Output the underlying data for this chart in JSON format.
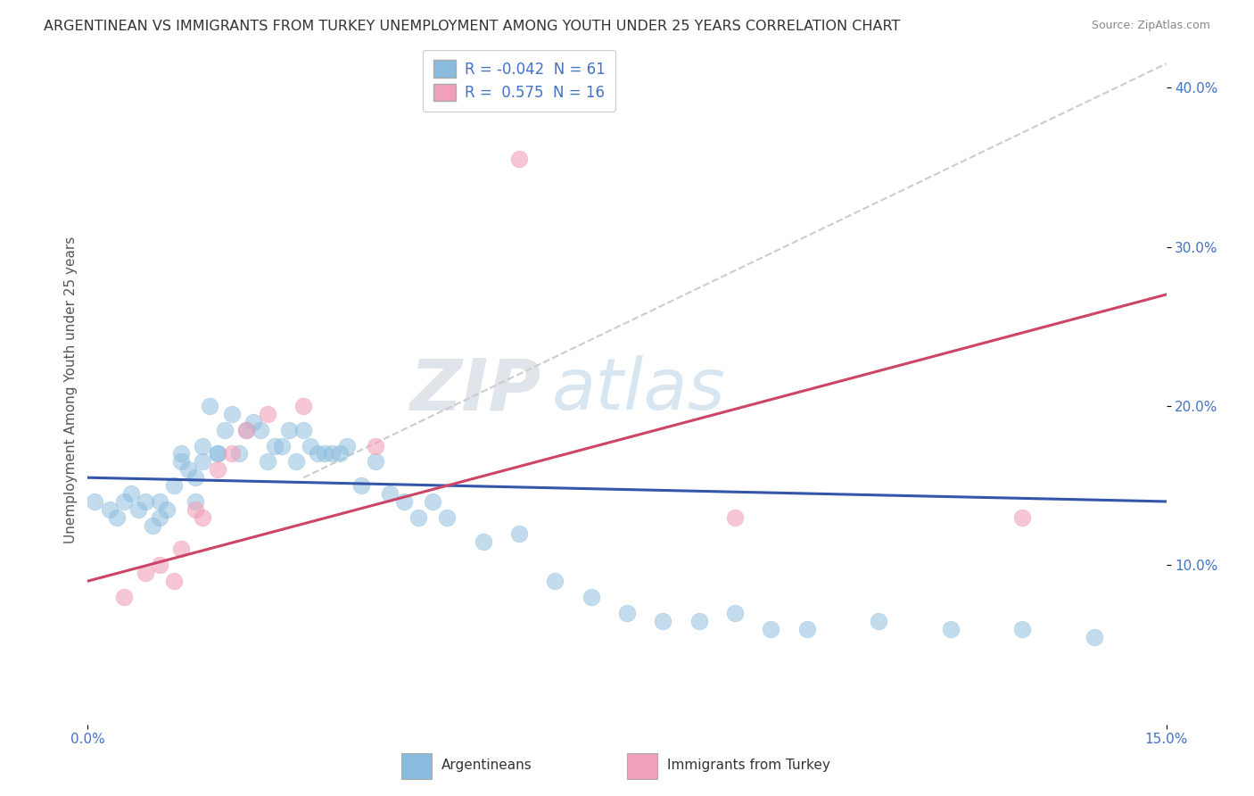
{
  "title": "ARGENTINEAN VS IMMIGRANTS FROM TURKEY UNEMPLOYMENT AMONG YOUTH UNDER 25 YEARS CORRELATION CHART",
  "source": "Source: ZipAtlas.com",
  "ylabel": "Unemployment Among Youth under 25 years",
  "xlim": [
    0.0,
    0.15
  ],
  "ylim": [
    0.0,
    0.42
  ],
  "y_ticks_right": [
    0.1,
    0.2,
    0.3,
    0.4
  ],
  "y_tick_labels_right": [
    "10.0%",
    "20.0%",
    "30.0%",
    "40.0%"
  ],
  "legend_label_argentineans": "Argentineans",
  "legend_label_turkey": "Immigrants from Turkey",
  "R_arg": -0.042,
  "N_arg": 61,
  "R_turkey": 0.575,
  "N_turkey": 16,
  "arg_color": "#88bbdd",
  "turkey_color": "#f0a0b8",
  "arg_line_color": "#3355aa",
  "turkey_line_color": "#cc4466",
  "trend_dashed_color": "#cccccc",
  "watermark_zip": "ZIP",
  "watermark_atlas": "atlas",
  "background_color": "#ffffff",
  "grid_color": "#dddddd",
  "arg_scatter": {
    "x": [
      0.001,
      0.003,
      0.004,
      0.005,
      0.006,
      0.007,
      0.008,
      0.009,
      0.01,
      0.01,
      0.011,
      0.012,
      0.013,
      0.013,
      0.014,
      0.015,
      0.015,
      0.016,
      0.016,
      0.017,
      0.018,
      0.018,
      0.019,
      0.02,
      0.021,
      0.022,
      0.023,
      0.024,
      0.025,
      0.026,
      0.027,
      0.028,
      0.029,
      0.03,
      0.031,
      0.032,
      0.033,
      0.034,
      0.035,
      0.036,
      0.038,
      0.04,
      0.042,
      0.044,
      0.046,
      0.048,
      0.05,
      0.055,
      0.06,
      0.065,
      0.07,
      0.075,
      0.08,
      0.085,
      0.09,
      0.095,
      0.1,
      0.11,
      0.12,
      0.13,
      0.14
    ],
    "y": [
      0.14,
      0.135,
      0.13,
      0.14,
      0.145,
      0.135,
      0.14,
      0.125,
      0.14,
      0.13,
      0.135,
      0.15,
      0.165,
      0.17,
      0.16,
      0.14,
      0.155,
      0.165,
      0.175,
      0.2,
      0.17,
      0.17,
      0.185,
      0.195,
      0.17,
      0.185,
      0.19,
      0.185,
      0.165,
      0.175,
      0.175,
      0.185,
      0.165,
      0.185,
      0.175,
      0.17,
      0.17,
      0.17,
      0.17,
      0.175,
      0.15,
      0.165,
      0.145,
      0.14,
      0.13,
      0.14,
      0.13,
      0.115,
      0.12,
      0.09,
      0.08,
      0.07,
      0.065,
      0.065,
      0.07,
      0.06,
      0.06,
      0.065,
      0.06,
      0.06,
      0.055
    ]
  },
  "turkey_scatter": {
    "x": [
      0.005,
      0.008,
      0.01,
      0.012,
      0.013,
      0.015,
      0.016,
      0.018,
      0.02,
      0.022,
      0.025,
      0.03,
      0.04,
      0.06,
      0.09,
      0.13
    ],
    "y": [
      0.08,
      0.095,
      0.1,
      0.09,
      0.11,
      0.135,
      0.13,
      0.16,
      0.17,
      0.185,
      0.195,
      0.2,
      0.175,
      0.355,
      0.13,
      0.13
    ]
  },
  "arg_line_x": [
    0.0,
    0.15
  ],
  "arg_line_y": [
    0.155,
    0.14
  ],
  "turkey_line_x": [
    0.0,
    0.15
  ],
  "turkey_line_y": [
    0.09,
    0.27
  ],
  "dash_line_x": [
    0.03,
    0.15
  ],
  "dash_line_y": [
    0.155,
    0.415
  ]
}
